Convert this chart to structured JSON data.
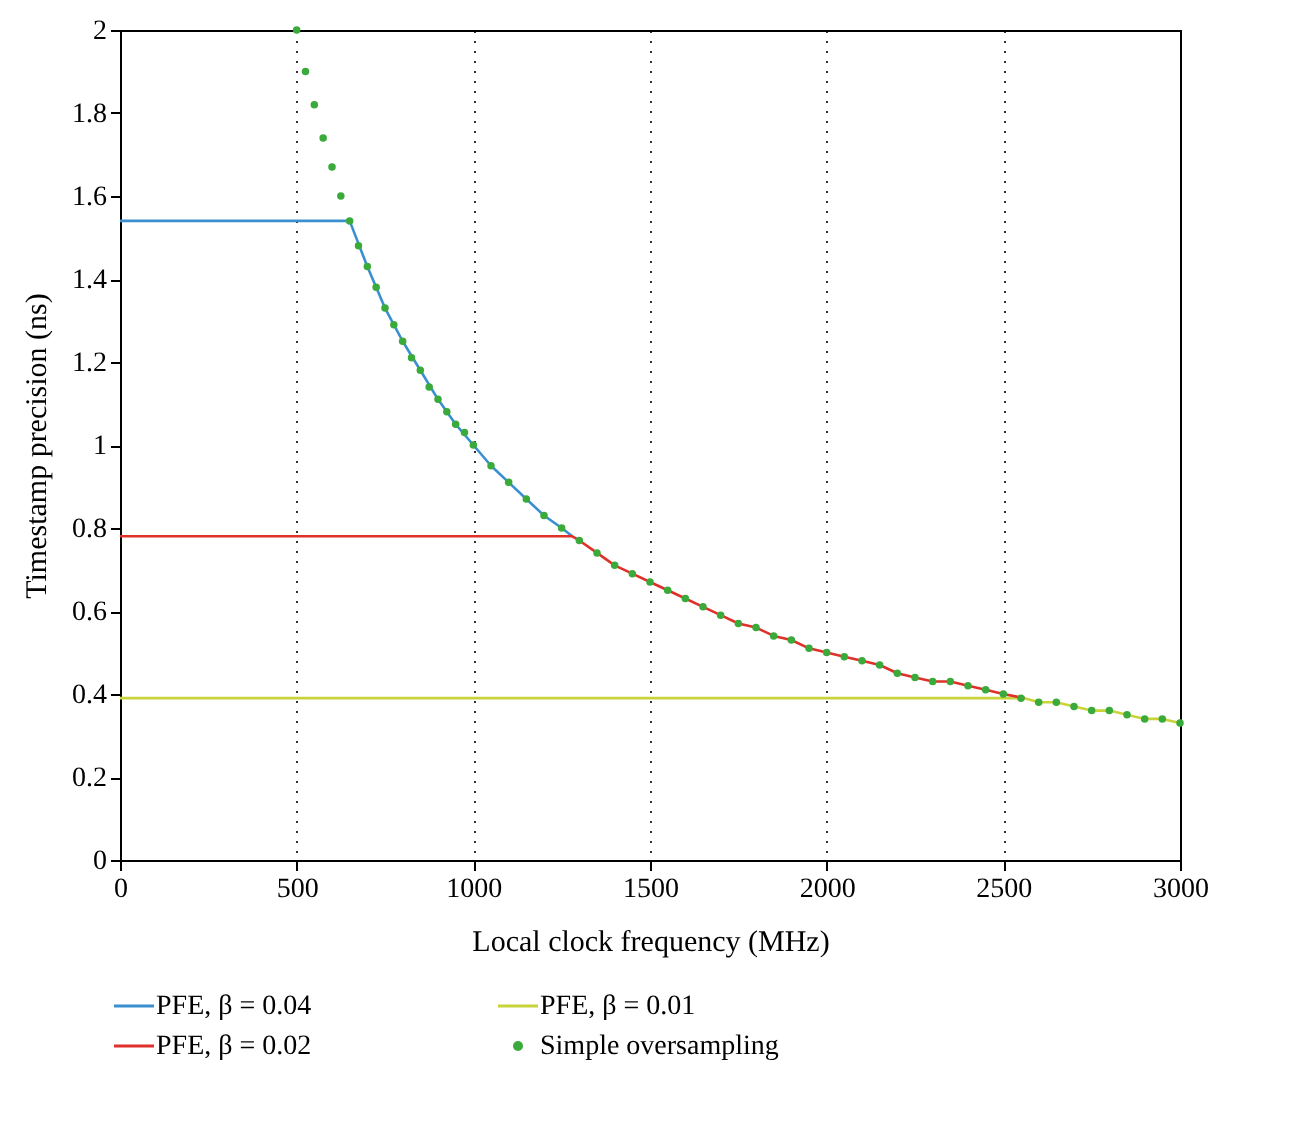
{
  "chart_data": {
    "type": "line",
    "xlabel": "Local clock frequency (MHz)",
    "ylabel": "Timestamp precision (ns)",
    "xlim": [
      0,
      3000
    ],
    "xticks": [
      0,
      500,
      1000,
      1500,
      2000,
      2500,
      3000
    ],
    "ylim": [
      0,
      2
    ],
    "yticks": [
      0,
      0.2,
      0.4,
      0.6,
      0.8,
      1,
      1.2,
      1.4,
      1.6,
      1.8,
      2
    ],
    "grid": "x",
    "legend": "bottom",
    "line_style": "solid",
    "series": [
      {
        "name": "PFE, β = 0.04",
        "color": "#3a8fd0",
        "x": [
          0,
          650,
          700,
          750,
          800,
          850,
          900,
          950,
          1000,
          1050,
          1100,
          1150,
          1200,
          1250,
          1280
        ],
        "values": [
          1.54,
          1.54,
          1.43,
          1.33,
          1.25,
          1.18,
          1.11,
          1.05,
          1,
          0.95,
          0.91,
          0.87,
          0.83,
          0.8,
          0.78
        ]
      },
      {
        "name": "PFE, β = 0.01",
        "color": "#c8d43a",
        "x": [
          0,
          2560,
          2600,
          2650,
          2700,
          2750,
          2800,
          2850,
          2900,
          2950,
          3000
        ],
        "values": [
          0.39,
          0.39,
          0.38,
          0.38,
          0.37,
          0.36,
          0.36,
          0.35,
          0.34,
          0.34,
          0.33
        ]
      },
      {
        "name": "PFE, β = 0.02",
        "color": "#e0302a",
        "x": [
          0,
          1280,
          1300,
          1350,
          1400,
          1450,
          1500,
          1550,
          1600,
          1650,
          1700,
          1750,
          1800,
          1850,
          1900,
          1950,
          2000,
          2050,
          2100,
          2150,
          2200,
          2250,
          2300,
          2350,
          2400,
          2450,
          2500,
          2560
        ],
        "values": [
          0.78,
          0.78,
          0.77,
          0.74,
          0.71,
          0.69,
          0.67,
          0.65,
          0.63,
          0.61,
          0.59,
          0.57,
          0.56,
          0.54,
          0.53,
          0.51,
          0.5,
          0.49,
          0.48,
          0.47,
          0.45,
          0.44,
          0.43,
          0.43,
          0.42,
          0.41,
          0.4,
          0.39
        ]
      },
      {
        "name": "Simple oversampling",
        "type": "scatter",
        "marker": "circle",
        "color": "#3aaa3a",
        "x": [
          500,
          525,
          550,
          575,
          600,
          625,
          650,
          675,
          700,
          725,
          750,
          775,
          800,
          825,
          850,
          875,
          900,
          925,
          950,
          975,
          1000,
          1050,
          1100,
          1150,
          1200,
          1250,
          1300,
          1350,
          1400,
          1450,
          1500,
          1550,
          1600,
          1650,
          1700,
          1750,
          1800,
          1850,
          1900,
          1950,
          2000,
          2050,
          2100,
          2150,
          2200,
          2250,
          2300,
          2350,
          2400,
          2450,
          2500,
          2550,
          2600,
          2650,
          2700,
          2750,
          2800,
          2850,
          2900,
          2950,
          3000
        ],
        "values": [
          2,
          1.9,
          1.82,
          1.74,
          1.67,
          1.6,
          1.54,
          1.48,
          1.43,
          1.38,
          1.33,
          1.29,
          1.25,
          1.21,
          1.18,
          1.14,
          1.11,
          1.08,
          1.05,
          1.03,
          1,
          0.95,
          0.91,
          0.87,
          0.83,
          0.8,
          0.77,
          0.74,
          0.71,
          0.69,
          0.67,
          0.65,
          0.63,
          0.61,
          0.59,
          0.57,
          0.56,
          0.54,
          0.53,
          0.51,
          0.5,
          0.49,
          0.48,
          0.47,
          0.45,
          0.44,
          0.43,
          0.43,
          0.42,
          0.41,
          0.4,
          0.39,
          0.38,
          0.38,
          0.37,
          0.36,
          0.36,
          0.35,
          0.34,
          0.34,
          0.33
        ]
      }
    ]
  }
}
